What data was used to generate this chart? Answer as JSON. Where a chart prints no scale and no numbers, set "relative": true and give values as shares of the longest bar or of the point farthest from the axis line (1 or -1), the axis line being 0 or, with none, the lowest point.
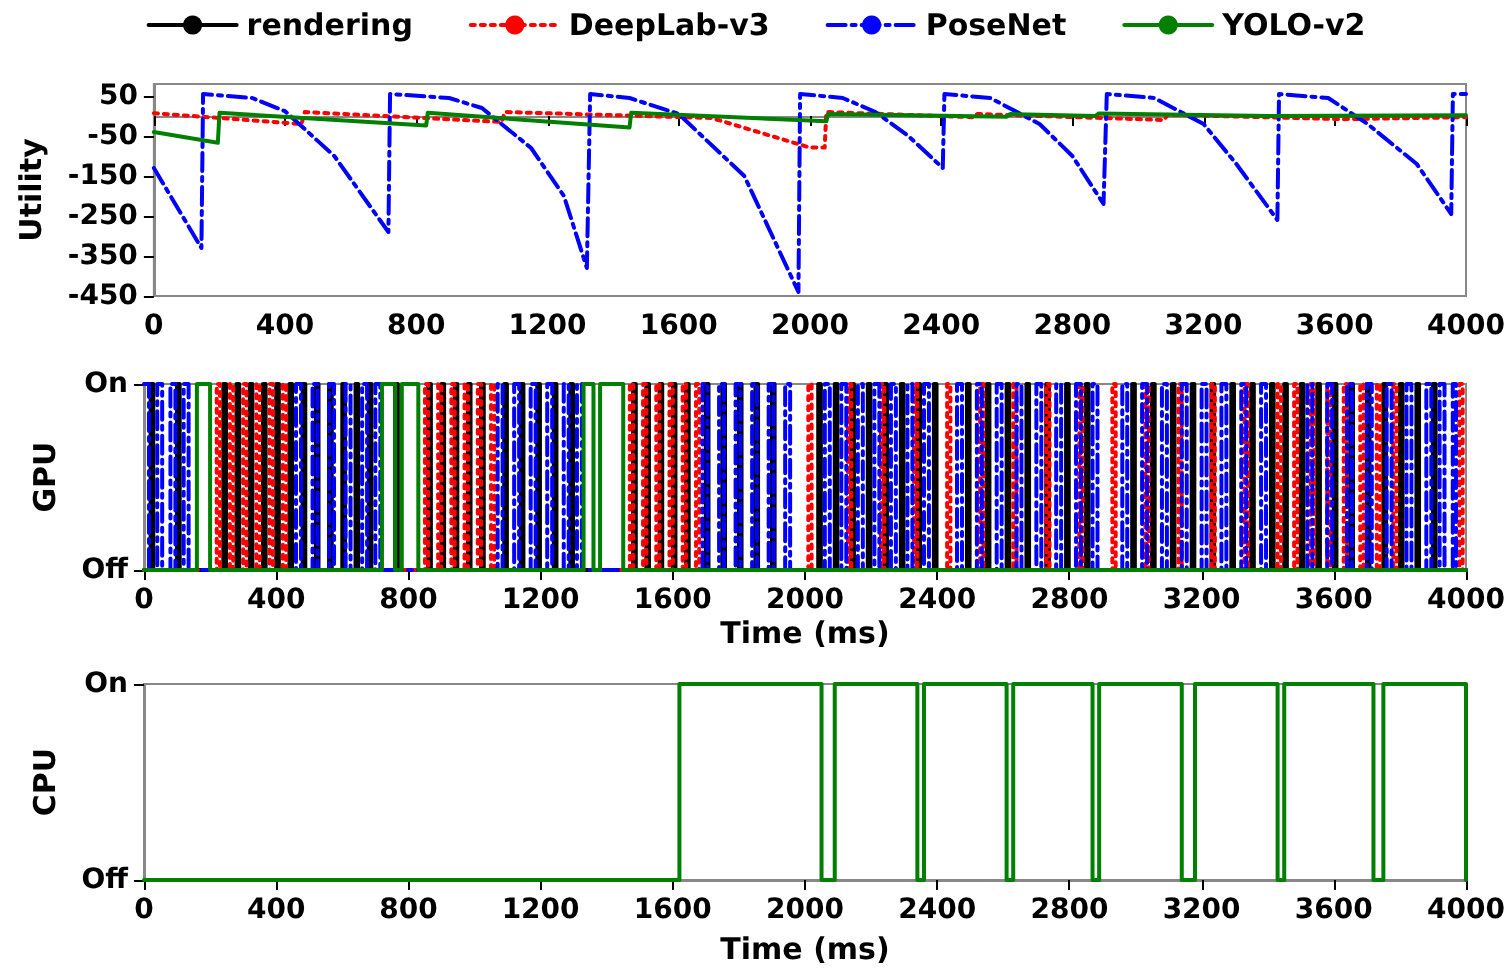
{
  "chart_data": [
    {
      "type": "line",
      "ylabel": "Utility",
      "xlim": [
        0,
        4000
      ],
      "xticks": [
        0,
        400,
        800,
        1200,
        1600,
        2000,
        2400,
        2800,
        3200,
        3600,
        4000
      ],
      "ylim": [
        -450,
        80
      ],
      "yticks": [
        -450,
        -350,
        -250,
        -150,
        -50,
        50
      ],
      "grid": false,
      "marker": "none",
      "series": [
        {
          "color": "#ff0000",
          "line_style": "dotted",
          "x": [
            0,
            450,
            460,
            1060,
            1070,
            1700,
            2000,
            2045,
            2050,
            2500,
            2510,
            3080,
            3090,
            3620,
            4000
          ],
          "values": [
            7,
            -20,
            10,
            -15,
            10,
            -5,
            -79,
            -79,
            10,
            -3,
            5,
            -10,
            3,
            -8,
            -3
          ]
        },
        {
          "color": "#0000ff",
          "line_style": "dashed",
          "x": [
            0,
            145,
            150,
            300,
            400,
            550,
            715,
            720,
            900,
            1000,
            1150,
            1250,
            1320,
            1330,
            1450,
            1600,
            1800,
            1965,
            1970,
            2100,
            2200,
            2300,
            2405,
            2410,
            2550,
            2700,
            2800,
            2895,
            2905,
            3050,
            3200,
            3300,
            3425,
            3430,
            3580,
            3700,
            3850,
            3955,
            3960,
            4000
          ],
          "values": [
            -130,
            -330,
            55,
            45,
            12,
            -100,
            -290,
            55,
            45,
            20,
            -80,
            -200,
            -380,
            55,
            45,
            5,
            -150,
            -440,
            55,
            45,
            10,
            -50,
            -130,
            55,
            45,
            -20,
            -100,
            -220,
            55,
            45,
            -20,
            -120,
            -260,
            55,
            45,
            -20,
            -120,
            -245,
            55,
            55
          ]
        },
        {
          "color": "#008000",
          "line_style": "solid",
          "x": [
            0,
            195,
            200,
            830,
            835,
            1450,
            1455,
            2050,
            2055,
            2600,
            2610,
            2870,
            2880,
            3400,
            4000
          ],
          "values": [
            -40,
            -67,
            8,
            -24,
            8,
            -29,
            8,
            -13,
            5,
            -2,
            5,
            0,
            6,
            0,
            2
          ]
        }
      ]
    },
    {
      "type": "step",
      "relative": true,
      "ylabel": "GPU",
      "xlabel": "Time (ms)",
      "xlim": [
        0,
        4000
      ],
      "xticks": [
        0,
        400,
        800,
        1200,
        1600,
        2000,
        2400,
        2800,
        3200,
        3600,
        4000
      ],
      "annotations": [
        "On",
        "Off"
      ],
      "grid": false,
      "legend": "top",
      "marker": "none",
      "series": [
        {
          "name": "rendering",
          "color": "#000000",
          "line_style": "solid",
          "x": [
            0,
            20,
            28,
            100,
            108,
            240,
            248,
            280,
            288,
            320,
            328,
            360,
            368,
            400,
            408,
            440,
            448,
            480,
            488,
            520,
            528,
            560,
            568,
            600,
            608,
            640,
            648,
            680,
            688,
            760,
            768,
            860,
            868,
            900,
            908,
            940,
            948,
            980,
            988,
            1020,
            1028,
            1090,
            1098,
            1140,
            1148,
            1190,
            1198,
            1240,
            1248,
            1290,
            1298,
            1480,
            1488,
            1520,
            1528,
            1560,
            1568,
            1600,
            1608,
            1640,
            1648,
            1700,
            1708,
            1750,
            1758,
            1800,
            1808,
            1850,
            1858,
            1900,
            1908,
            2040,
            2048,
            2090,
            2098,
            2140,
            2148,
            2190,
            2198,
            2240,
            2248,
            2290,
            2298,
            2340,
            2348,
            2390,
            2398,
            2490,
            2498,
            2550,
            2558,
            2610,
            2618,
            2670,
            2678,
            2730,
            2738,
            2790,
            2798,
            2850,
            2858,
            2990,
            2998,
            3050,
            3058,
            3110,
            3118,
            3170,
            3178,
            3230,
            3238,
            3290,
            3298,
            3350,
            3358,
            3410,
            3418,
            3450,
            3458,
            3500,
            3508,
            3550,
            3558,
            3600,
            3608,
            3650,
            3658,
            3700,
            3708,
            3750,
            3758,
            3800,
            3808,
            3850,
            3858,
            3900,
            3908,
            4000
          ],
          "values": [
            0,
            1,
            0,
            1,
            0,
            1,
            0,
            1,
            0,
            1,
            0,
            1,
            0,
            1,
            0,
            1,
            0,
            1,
            0,
            1,
            0,
            1,
            0,
            1,
            0,
            1,
            0,
            1,
            0,
            1,
            0,
            1,
            0,
            1,
            0,
            1,
            0,
            1,
            0,
            1,
            0,
            1,
            0,
            1,
            0,
            1,
            0,
            1,
            0,
            1,
            0,
            1,
            0,
            1,
            0,
            1,
            0,
            1,
            0,
            1,
            0,
            1,
            0,
            1,
            0,
            1,
            0,
            1,
            0,
            1,
            0,
            1,
            0,
            1,
            0,
            1,
            0,
            1,
            0,
            1,
            0,
            1,
            0,
            1,
            0,
            1,
            0,
            1,
            0,
            1,
            0,
            1,
            0,
            1,
            0,
            1,
            0,
            1,
            0,
            1,
            0,
            1,
            0,
            1,
            0,
            1,
            0,
            1,
            0,
            1,
            0,
            1,
            0,
            1,
            0,
            1,
            0,
            1,
            0,
            1,
            0,
            1,
            0,
            1,
            0,
            1,
            0,
            1,
            0,
            1,
            0,
            1,
            0,
            1,
            0,
            1,
            0,
            0
          ]
        },
        {
          "name": "DeepLab-v3",
          "color": "#ff0000",
          "line_style": "dotted",
          "x": [
            0,
            220,
            230,
            260,
            270,
            300,
            310,
            340,
            350,
            380,
            390,
            420,
            430,
            850,
            860,
            890,
            900,
            930,
            940,
            970,
            980,
            1010,
            1020,
            1050,
            1060,
            1470,
            1480,
            1510,
            1520,
            1550,
            1560,
            1590,
            1600,
            1630,
            1640,
            1670,
            1680,
            2010,
            2020,
            2130,
            2140,
            2230,
            2240,
            2330,
            2340,
            2430,
            2440,
            2530,
            2540,
            2630,
            2640,
            2730,
            2740,
            2830,
            2840,
            2930,
            2940,
            3030,
            3040,
            3130,
            3140,
            3230,
            3240,
            3330,
            3340,
            3430,
            3440,
            3480,
            3490,
            3530,
            3540,
            3580,
            3590,
            3630,
            3640,
            3680,
            3690,
            3730,
            3740,
            3780,
            3790,
            3980,
            3990,
            4000
          ],
          "values": [
            0,
            1,
            0,
            1,
            0,
            1,
            0,
            1,
            0,
            1,
            0,
            1,
            0,
            1,
            0,
            1,
            0,
            1,
            0,
            1,
            0,
            1,
            0,
            1,
            0,
            1,
            0,
            1,
            0,
            1,
            0,
            1,
            0,
            1,
            0,
            1,
            0,
            1,
            0,
            1,
            0,
            1,
            0,
            1,
            0,
            1,
            0,
            1,
            0,
            1,
            0,
            1,
            0,
            1,
            0,
            1,
            0,
            1,
            0,
            1,
            0,
            1,
            0,
            1,
            0,
            1,
            0,
            1,
            0,
            1,
            0,
            1,
            0,
            1,
            0,
            1,
            0,
            1,
            0,
            1,
            0,
            1,
            0,
            0
          ]
        },
        {
          "name": "PoseNet",
          "color": "#0000ff",
          "line_style": "dashed",
          "x": [
            0,
            15,
            40,
            55,
            80,
            95,
            120,
            135,
            460,
            475,
            510,
            525,
            560,
            575,
            610,
            625,
            660,
            675,
            700,
            715,
            1070,
            1085,
            1120,
            1135,
            1170,
            1185,
            1220,
            1235,
            1270,
            1285,
            1310,
            1325,
            1690,
            1705,
            1740,
            1755,
            1790,
            1805,
            1840,
            1855,
            1890,
            1905,
            1940,
            1955,
            2060,
            2075,
            2110,
            2125,
            2160,
            2175,
            2210,
            2225,
            2260,
            2275,
            2310,
            2325,
            2360,
            2375,
            2460,
            2475,
            2520,
            2535,
            2580,
            2595,
            2640,
            2655,
            2700,
            2715,
            2760,
            2775,
            2820,
            2835,
            2870,
            2885,
            2960,
            2975,
            3020,
            3035,
            3080,
            3095,
            3140,
            3155,
            3200,
            3215,
            3260,
            3275,
            3320,
            3335,
            3380,
            3395,
            3520,
            3535,
            3580,
            3595,
            3640,
            3655,
            3700,
            3715,
            3760,
            3775,
            3820,
            3835,
            3880,
            3895,
            3920,
            3935,
            3960,
            3970,
            4000
          ],
          "values": [
            1,
            0,
            1,
            0,
            1,
            0,
            1,
            0,
            1,
            0,
            1,
            0,
            1,
            0,
            1,
            0,
            1,
            0,
            1,
            0,
            1,
            0,
            1,
            0,
            1,
            0,
            1,
            0,
            1,
            0,
            1,
            0,
            1,
            0,
            1,
            0,
            1,
            0,
            1,
            0,
            1,
            0,
            1,
            0,
            1,
            0,
            1,
            0,
            1,
            0,
            1,
            0,
            1,
            0,
            1,
            0,
            1,
            0,
            1,
            0,
            1,
            0,
            1,
            0,
            1,
            0,
            1,
            0,
            1,
            0,
            1,
            0,
            1,
            0,
            1,
            0,
            1,
            0,
            1,
            0,
            1,
            0,
            1,
            0,
            1,
            0,
            1,
            0,
            1,
            0,
            1,
            0,
            1,
            0,
            1,
            0,
            1,
            0,
            1,
            0,
            1,
            0,
            1,
            0,
            1,
            0,
            1,
            0,
            0
          ]
        },
        {
          "name": "YOLO-v2",
          "color": "#008000",
          "line_style": "solid",
          "x": [
            0,
            160,
            200,
            720,
            760,
            780,
            830,
            1330,
            1360,
            1380,
            1450,
            4000
          ],
          "values": [
            0,
            1,
            0,
            1,
            0,
            1,
            0,
            1,
            0,
            1,
            0,
            0
          ]
        }
      ]
    },
    {
      "type": "step",
      "relative": true,
      "ylabel": "CPU",
      "xlabel": "Time (ms)",
      "xlim": [
        0,
        4000
      ],
      "xticks": [
        0,
        400,
        800,
        1200,
        1600,
        2000,
        2400,
        2800,
        3200,
        3600,
        4000
      ],
      "annotations": [
        "On",
        "Off"
      ],
      "grid": false,
      "marker": "none",
      "series": [
        {
          "color": "#008000",
          "line_style": "solid",
          "x": [
            0,
            1620,
            2050,
            2090,
            2340,
            2360,
            2610,
            2630,
            2870,
            2890,
            3140,
            3180,
            3430,
            3450,
            3720,
            3750,
            4000
          ],
          "values": [
            0,
            1,
            0,
            1,
            0,
            1,
            0,
            1,
            0,
            1,
            0,
            1,
            0,
            1,
            0,
            1,
            0
          ]
        }
      ]
    }
  ]
}
